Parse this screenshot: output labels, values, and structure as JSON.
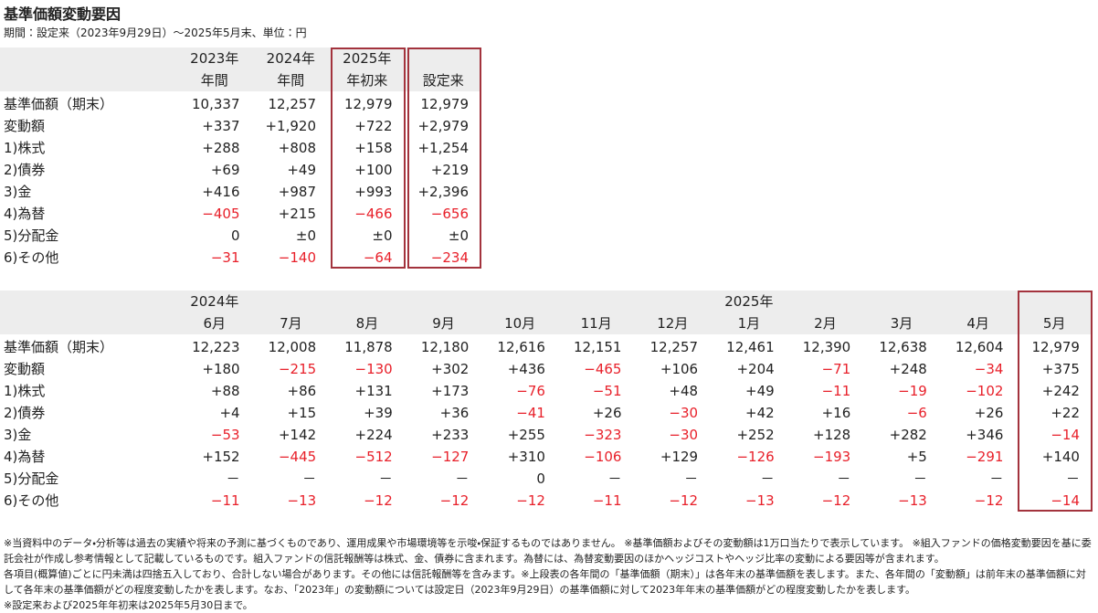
{
  "header": {
    "title": "基準価額変動要因",
    "subtitle": "期間：設定来（2023年9月29日）～2025年5月末、単位：円"
  },
  "table1": {
    "columns": [
      {
        "year": "2023年",
        "label": "年間"
      },
      {
        "year": "2024年",
        "label": "年間"
      },
      {
        "year": "2025年",
        "label": "年初来"
      },
      {
        "label": "設定来"
      }
    ],
    "rows": [
      {
        "label": "基準価額（期末）",
        "cells": [
          "10,337",
          "12,257",
          "12,979",
          "12,979"
        ]
      },
      {
        "label": "変動額",
        "cells": [
          "+337",
          "+1,920",
          "+722",
          "+2,979"
        ]
      },
      {
        "label": "1)株式",
        "cells": [
          "+288",
          "+808",
          "+158",
          "+1,254"
        ]
      },
      {
        "label": "2)債券",
        "cells": [
          "+69",
          "+49",
          "+100",
          "+219"
        ]
      },
      {
        "label": "3)金",
        "cells": [
          "+416",
          "+987",
          "+993",
          "+2,396"
        ]
      },
      {
        "label": "4)為替",
        "cells": [
          "−405",
          "+215",
          "−466",
          "−656"
        ]
      },
      {
        "label": "5)分配金",
        "cells": [
          "0",
          "±0",
          "±0",
          "±0"
        ]
      },
      {
        "label": "6)その他",
        "cells": [
          "−31",
          "−140",
          "−64",
          "−234"
        ]
      }
    ]
  },
  "table2": {
    "periods": [
      {
        "year": "2024年",
        "months": [
          "6月",
          "7月",
          "8月",
          "9月",
          "10月",
          "11月",
          "12月"
        ]
      },
      {
        "year": "2025年",
        "months": [
          "1月",
          "2月",
          "3月",
          "4月",
          "5月"
        ]
      }
    ],
    "rows": [
      {
        "label": "基準価額（期末）",
        "cells": [
          "12,223",
          "12,008",
          "11,878",
          "12,180",
          "12,616",
          "12,151",
          "12,257",
          "12,461",
          "12,390",
          "12,638",
          "12,604",
          "12,979"
        ]
      },
      {
        "label": "変動額",
        "cells": [
          "+180",
          "−215",
          "−130",
          "+302",
          "+436",
          "−465",
          "+106",
          "+204",
          "−71",
          "+248",
          "−34",
          "+375"
        ]
      },
      {
        "label": "1)株式",
        "cells": [
          "+88",
          "+86",
          "+131",
          "+173",
          "−76",
          "−51",
          "+48",
          "+49",
          "−11",
          "−19",
          "−102",
          "+242"
        ]
      },
      {
        "label": "2)債券",
        "cells": [
          "+4",
          "+15",
          "+39",
          "+36",
          "−41",
          "+26",
          "−30",
          "+42",
          "+16",
          "−6",
          "+26",
          "+22"
        ]
      },
      {
        "label": "3)金",
        "cells": [
          "−53",
          "+142",
          "+224",
          "+233",
          "+255",
          "−323",
          "−30",
          "+252",
          "+128",
          "+282",
          "+346",
          "−14"
        ]
      },
      {
        "label": "4)為替",
        "cells": [
          "+152",
          "−445",
          "−512",
          "−127",
          "+310",
          "−106",
          "+129",
          "−126",
          "−193",
          "+5",
          "−291",
          "+140"
        ]
      },
      {
        "label": "5)分配金",
        "cells": [
          "－",
          "－",
          "－",
          "－",
          "0",
          "－",
          "－",
          "－",
          "－",
          "－",
          "－",
          "－"
        ]
      },
      {
        "label": "6)その他",
        "cells": [
          "−11",
          "−13",
          "−12",
          "−12",
          "−12",
          "−11",
          "−12",
          "−13",
          "−12",
          "−13",
          "−12",
          "−14"
        ]
      }
    ]
  },
  "notes": [
    "※当資料中のデータ・分析等は過去の実績や将来の予測に基づくものであり、運用成果や市場環境等を示唆・保証するものではありません。 ※基準価額およびその変動額は1万口当たりで表示しています。 ※組入ファンドの価格変動要因を基に委託会社が作成し参考情報として記載しているものです。組入ファンドの信託報酬等は株式、金、債券に含まれます。為替には、為替変動要因のほかヘッジコストやヘッジ比率の変動による要因等が含まれます。",
    "各項目(概算値)ごとに円未満は四捨五入しており、合計しない場合があります。その他には信託報酬等を含みます。※上段表の各年間の「基準価額（期末）」は各年末の基準価額を表します。また、各年間の「変動額」は前年末の基準価額に対して各年末の基準価額がどの程度変動したかを表します。なお、「2023年」の変動額については設定日（2023年9月29日）の基準価額に対して2023年年末の基準価額がどの程度変動したかを表します。",
    "※設定来および2025年年初来は2025年5月30日まで。"
  ]
}
